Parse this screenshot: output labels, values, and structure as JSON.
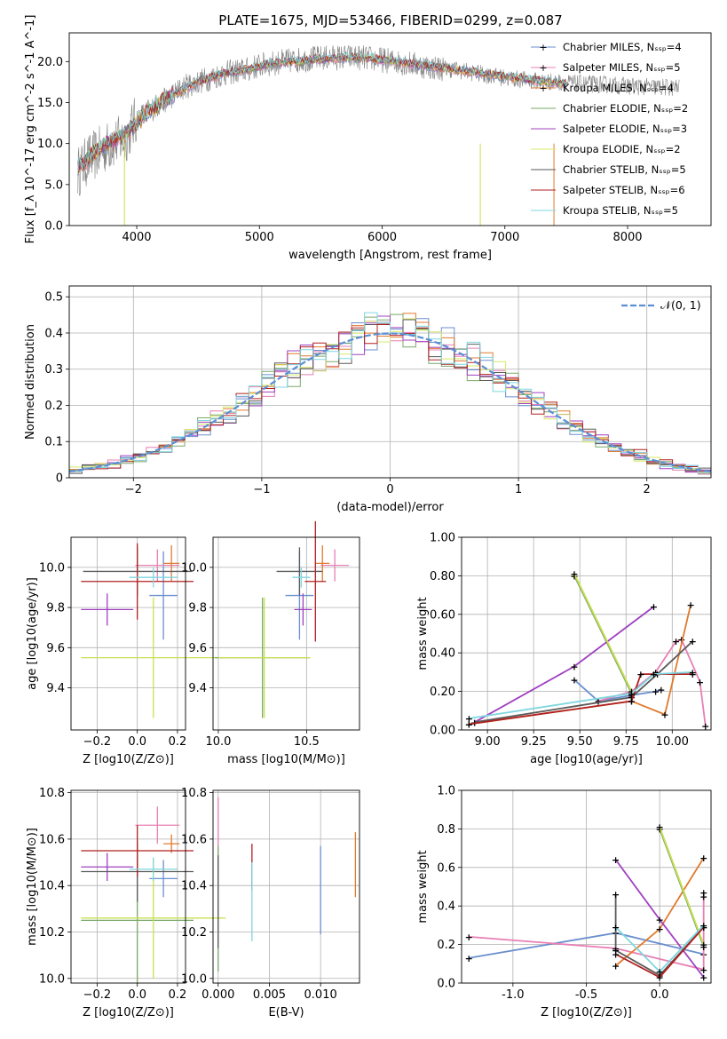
{
  "figure": {
    "title": "PLATE=1675, MJD=53466, FIBERID=0299, z=0.087"
  },
  "chart_data": [
    {
      "id": "spectrum",
      "type": "line",
      "title": "PLATE=1675, MJD=53466, FIBERID=0299, z=0.087",
      "xlabel": "wavelength [Angstrom, rest frame]",
      "ylabel": "Flux [f_λ 10^-17 erg cm^-2 s^-1 A^-1]",
      "xlim": [
        3450,
        8680
      ],
      "ylim": [
        0,
        23.5
      ],
      "xticks": [
        4000,
        5000,
        6000,
        7000,
        8000
      ],
      "yticks": [
        0,
        5,
        10,
        15,
        20
      ],
      "grid": false,
      "legend_position": "right",
      "data_series": {
        "name": "",
        "color": "#808080",
        "x": [
          3520,
          3600,
          3700,
          3800,
          3900,
          4000,
          4100,
          4200,
          4300,
          4400,
          4500,
          4600,
          4700,
          4800,
          4900,
          5000,
          5200,
          5400,
          5600,
          5800,
          6000,
          6200,
          6400,
          6600,
          6800,
          7000,
          7200,
          7400,
          7600,
          7800,
          8000,
          8200,
          8400
        ],
        "y": [
          6.5,
          8.0,
          9.0,
          10.0,
          10.5,
          13.0,
          14.0,
          15.0,
          16.0,
          17.0,
          17.5,
          18.0,
          18.5,
          18.8,
          19.0,
          19.5,
          20.0,
          20.3,
          20.5,
          20.5,
          20.2,
          19.8,
          19.3,
          19.0,
          18.5,
          18.0,
          17.7,
          17.5,
          17.3,
          17.2,
          17.0,
          16.9,
          16.8
        ]
      },
      "models": [
        {
          "name": "Chabrier MILES, N_SSP=4",
          "color": "#6a8fcf"
        },
        {
          "name": "Salpeter MILES, N_SSP=5",
          "color": "#e87fb5"
        },
        {
          "name": "Kroupa MILES, N_SSP=4",
          "color": "#e07b30"
        },
        {
          "name": "Chabrier ELODIE, N_SSP=2",
          "color": "#7aa86a"
        },
        {
          "name": "Salpeter ELODIE, N_SSP=3",
          "color": "#a040c0"
        },
        {
          "name": "Kroupa ELODIE, N_SSP=2",
          "color": "#d8e868"
        },
        {
          "name": "Chabrier STELIB, N_SSP=5",
          "color": "#5a5a5a"
        },
        {
          "name": "Salpeter STELIB, N_SSP=6",
          "color": "#b02020"
        },
        {
          "name": "Kroupa STELIB, N_SSP=5",
          "color": "#7fd6df"
        }
      ],
      "model_x": [
        3520,
        3700,
        3900,
        4100,
        4300,
        4500,
        4700,
        4900,
        5100,
        5300,
        5500,
        5700,
        5900,
        6100,
        6300,
        6500,
        6700,
        6900,
        7100,
        7300,
        7500
      ],
      "model_y": [
        7.0,
        9.5,
        11.0,
        14.0,
        16.0,
        17.5,
        18.5,
        19.0,
        19.8,
        20.0,
        20.3,
        20.5,
        20.4,
        20.0,
        19.6,
        19.2,
        18.8,
        18.4,
        18.0,
        17.6,
        17.3
      ]
    },
    {
      "id": "residuals",
      "type": "histogram",
      "xlabel": "(data-model)/error",
      "ylabel": "Normed distribution",
      "xlim": [
        -2.5,
        2.5
      ],
      "ylim": [
        0,
        0.53
      ],
      "xticks": [
        -2,
        -1,
        0,
        1,
        2
      ],
      "yticks": [
        0.0,
        0.1,
        0.2,
        0.3,
        0.4,
        0.5
      ],
      "grid": true,
      "legend_position": "top-right",
      "reference": {
        "name": "𝒩(0, 1)",
        "color": "#5a8fd6",
        "style": "dashed"
      },
      "bin_start": -2.5,
      "bin_width": 0.1
    },
    {
      "id": "age-vs-Z",
      "type": "errorbar",
      "xlabel": "Z [log10(Z/Z⊙)]",
      "ylabel": "age [log10(age/yr)]",
      "xlim": [
        -0.33,
        0.24
      ],
      "ylim": [
        9.19,
        10.15
      ],
      "xticks": [
        -0.2,
        0.0,
        0.2
      ],
      "yticks": [
        9.4,
        9.6,
        9.8,
        10.0
      ],
      "grid": true,
      "points": [
        {
          "color": "#6a8fcf",
          "x": 0.13,
          "y": 9.86,
          "xerr": 0.07,
          "yerr": 0.22
        },
        {
          "color": "#e87fb5",
          "x": 0.1,
          "y": 10.01,
          "xerr": 0.11,
          "yerr": 0.08
        },
        {
          "color": "#e07b30",
          "x": 0.17,
          "y": 10.02,
          "xerr": 0.04,
          "yerr": 0.09
        },
        {
          "color": "#7aa86a",
          "x": -0.29,
          "y": 9.55,
          "xerr": 0.0,
          "yerr": 0.0
        },
        {
          "color": "#a040c0",
          "x": -0.15,
          "y": 9.79,
          "xerr": 0.13,
          "yerr": 0.08
        },
        {
          "color": "#c8e050",
          "x": 0.08,
          "y": 9.55,
          "xerr": 0.36,
          "yerr": 0.3
        },
        {
          "color": "#5a5a5a",
          "x": 0.0,
          "y": 9.98,
          "xerr": 0.27,
          "yerr": 0.12
        },
        {
          "color": "#b02020",
          "x": 0.0,
          "y": 9.93,
          "xerr": 0.28,
          "yerr": 0.19
        },
        {
          "color": "#7fd6df",
          "x": 0.08,
          "y": 9.95,
          "xerr": 0.12,
          "yerr": 0.05
        }
      ]
    },
    {
      "id": "age-vs-mass",
      "type": "errorbar",
      "xlabel": "mass [log10(M/M⊙)]",
      "ylabel": "",
      "xlim": [
        9.97,
        10.8
      ],
      "ylim": [
        9.19,
        10.15
      ],
      "xticks": [
        10.0,
        10.5
      ],
      "yticks": [
        9.4,
        9.6,
        9.8,
        10.0
      ],
      "grid": true,
      "points": [
        {
          "color": "#6a8fcf",
          "x": 10.46,
          "y": 9.86,
          "xerr": 0.08,
          "yerr": 0.22
        },
        {
          "color": "#e87fb5",
          "x": 10.66,
          "y": 10.01,
          "xerr": 0.08,
          "yerr": 0.08
        },
        {
          "color": "#e07b30",
          "x": 10.59,
          "y": 10.02,
          "xerr": 0.04,
          "yerr": 0.09
        },
        {
          "color": "#7aa86a",
          "x": 10.25,
          "y": 9.55,
          "xerr": 0.27,
          "yerr": 0.3
        },
        {
          "color": "#a040c0",
          "x": 10.48,
          "y": 9.79,
          "xerr": 0.05,
          "yerr": 0.08
        },
        {
          "color": "#c8e050",
          "x": 10.26,
          "y": 9.55,
          "xerr": 0.26,
          "yerr": 0.3
        },
        {
          "color": "#5a5a5a",
          "x": 10.46,
          "y": 9.98,
          "xerr": 0.13,
          "yerr": 0.12
        },
        {
          "color": "#b02020",
          "x": 10.55,
          "y": 9.93,
          "xerr": 0.06,
          "yerr": 0.3
        },
        {
          "color": "#7fd6df",
          "x": 10.47,
          "y": 9.95,
          "xerr": 0.05,
          "yerr": 0.05
        }
      ]
    },
    {
      "id": "mass-weight-vs-age",
      "type": "line",
      "xlabel": "age [log10(age/yr)]",
      "ylabel": "mass weight",
      "xlim": [
        8.86,
        10.21
      ],
      "ylim": [
        0,
        1
      ],
      "xticks": [
        9.0,
        9.25,
        9.5,
        9.75,
        10.0
      ],
      "yticks": [
        0.0,
        0.2,
        0.4,
        0.6,
        0.8,
        1.0
      ],
      "grid": true,
      "series": [
        {
          "color": "#6a8fcf",
          "x": [
            9.47,
            9.6,
            9.78,
            9.91,
            9.94
          ],
          "y": [
            0.26,
            0.15,
            0.18,
            0.2,
            0.21
          ]
        },
        {
          "color": "#e87fb5",
          "x": [
            9.6,
            9.78,
            9.91,
            10.02,
            10.05,
            10.15,
            10.18
          ],
          "y": [
            0.15,
            0.2,
            0.3,
            0.46,
            0.47,
            0.25,
            0.02
          ]
        },
        {
          "color": "#e07b30",
          "x": [
            8.9,
            9.78,
            9.96,
            10.1
          ],
          "y": [
            0.03,
            0.15,
            0.08,
            0.65
          ]
        },
        {
          "color": "#7aa86a",
          "x": [
            9.47,
            9.78
          ],
          "y": [
            0.8,
            0.19
          ]
        },
        {
          "color": "#a040c0",
          "x": [
            8.93,
            9.47,
            9.9
          ],
          "y": [
            0.04,
            0.33,
            0.64
          ]
        },
        {
          "color": "#c8e050",
          "x": [
            9.47,
            9.78
          ],
          "y": [
            0.81,
            0.2
          ]
        },
        {
          "color": "#5a5a5a",
          "x": [
            8.93,
            9.78,
            9.92,
            10.11
          ],
          "y": [
            0.04,
            0.17,
            0.29,
            0.46
          ]
        },
        {
          "color": "#b02020",
          "x": [
            8.9,
            9.78,
            9.83,
            10.11
          ],
          "y": [
            0.03,
            0.15,
            0.29,
            0.29
          ]
        },
        {
          "color": "#7fd6df",
          "x": [
            8.9,
            9.78,
            9.9,
            10.11
          ],
          "y": [
            0.06,
            0.19,
            0.29,
            0.3
          ]
        }
      ]
    },
    {
      "id": "mass-vs-Z",
      "type": "errorbar",
      "xlabel": "Z [log10(Z/Z⊙)]",
      "ylabel": "mass [log10(M/M⊙)]",
      "xlim": [
        -0.33,
        0.24
      ],
      "ylim": [
        9.98,
        10.81
      ],
      "xticks": [
        -0.2,
        0.0,
        0.2
      ],
      "yticks": [
        10.0,
        10.2,
        10.4,
        10.6,
        10.8
      ],
      "grid": true,
      "points": [
        {
          "color": "#6a8fcf",
          "x": 0.13,
          "y": 10.43,
          "xerr": 0.07,
          "yerr": 0.08
        },
        {
          "color": "#e87fb5",
          "x": 0.1,
          "y": 10.66,
          "xerr": 0.11,
          "yerr": 0.08
        },
        {
          "color": "#e07b30",
          "x": 0.17,
          "y": 10.58,
          "xerr": 0.04,
          "yerr": 0.04
        },
        {
          "color": "#7aa86a",
          "x": 0.0,
          "y": 10.25,
          "xerr": 0.28,
          "yerr": 0.27
        },
        {
          "color": "#a040c0",
          "x": -0.15,
          "y": 10.48,
          "xerr": 0.13,
          "yerr": 0.06
        },
        {
          "color": "#c8e050",
          "x": 0.08,
          "y": 10.26,
          "xerr": 0.36,
          "yerr": 0.26
        },
        {
          "color": "#5a5a5a",
          "x": 0.0,
          "y": 10.46,
          "xerr": 0.28,
          "yerr": 0.13
        },
        {
          "color": "#b02020",
          "x": 0.0,
          "y": 10.55,
          "xerr": 0.28,
          "yerr": 0.11
        },
        {
          "color": "#7fd6df",
          "x": 0.08,
          "y": 10.47,
          "xerr": 0.12,
          "yerr": 0.05
        }
      ]
    },
    {
      "id": "mass-vs-EBV",
      "type": "errorbar",
      "xlabel": "E(B-V)",
      "ylabel": "",
      "xlim": [
        -0.0005,
        0.0138
      ],
      "ylim": [
        9.98,
        10.81
      ],
      "xticks": [
        0.0,
        0.005,
        0.01
      ],
      "yticks": [
        10.0,
        10.2,
        10.4,
        10.6,
        10.8
      ],
      "grid": true,
      "points": [
        {
          "color": "#6a8fcf",
          "x": 0.01,
          "y": 10.38,
          "yerr": 0.19
        },
        {
          "color": "#e87fb5",
          "x": 0.0,
          "y": 10.6,
          "yerr": 0.18
        },
        {
          "color": "#e07b30",
          "x": 0.0134,
          "y": 10.49,
          "yerr": 0.14
        },
        {
          "color": "#7aa86a",
          "x": 0.0,
          "y": 10.3,
          "yerr": 0.27
        },
        {
          "color": "#5a5a5a",
          "x": 0.0,
          "y": 10.33,
          "yerr": 0.2
        },
        {
          "color": "#b02020",
          "x": 0.0033,
          "y": 10.48,
          "yerr": 0.1
        },
        {
          "color": "#7fd6df",
          "x": 0.0033,
          "y": 10.33,
          "yerr": 0.17
        }
      ]
    },
    {
      "id": "mass-weight-vs-Z",
      "type": "line",
      "xlabel": "Z [log10(Z/Z⊙)]",
      "ylabel": "mass weight",
      "xlim": [
        -1.35,
        0.35
      ],
      "ylim": [
        0,
        1
      ],
      "xticks": [
        -1.0,
        -0.5,
        0.0
      ],
      "yticks": [
        0.0,
        0.2,
        0.4,
        0.6,
        0.8,
        1.0
      ],
      "grid": true,
      "series": [
        {
          "color": "#6a8fcf",
          "x": [
            -1.3,
            -0.3,
            0.3
          ],
          "y": [
            0.13,
            0.26,
            0.15
          ]
        },
        {
          "color": "#e87fb5",
          "x": [
            -1.3,
            -0.3,
            0.3,
            0.3,
            0.3
          ],
          "y": [
            0.24,
            0.18,
            0.07,
            0.45,
            0.47
          ]
        },
        {
          "color": "#e07b30",
          "x": [
            -0.3,
            0.0,
            0.3
          ],
          "y": [
            0.09,
            0.28,
            0.65
          ]
        },
        {
          "color": "#7aa86a",
          "x": [
            0.0,
            0.3
          ],
          "y": [
            0.8,
            0.19
          ]
        },
        {
          "color": "#a040c0",
          "x": [
            -0.3,
            0.0,
            0.3
          ],
          "y": [
            0.64,
            0.33,
            0.03
          ]
        },
        {
          "color": "#c8e050",
          "x": [
            0.0,
            0.3
          ],
          "y": [
            0.81,
            0.2
          ]
        },
        {
          "color": "#5a5a5a",
          "x": [
            -0.3,
            -0.3,
            0.0,
            0.3
          ],
          "y": [
            0.46,
            0.17,
            0.04,
            0.29
          ]
        },
        {
          "color": "#b02020",
          "x": [
            -0.3,
            0.0,
            0.3
          ],
          "y": [
            0.15,
            0.03,
            0.29
          ]
        },
        {
          "color": "#7fd6df",
          "x": [
            -0.3,
            0.0,
            0.3
          ],
          "y": [
            0.29,
            0.06,
            0.3
          ]
        }
      ]
    }
  ]
}
